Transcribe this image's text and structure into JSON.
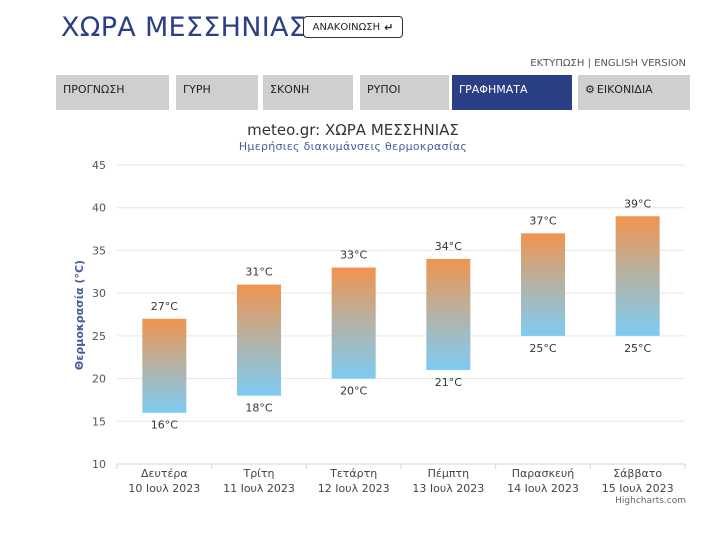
{
  "header": {
    "title": "ΧΩΡΑ ΜΕΣΣΗΝΙΑΣ",
    "announce_label": "ΑΝΑΚΟΙΝΩΣΗ",
    "announce_icon": "return-arrow-icon",
    "print_link": "ΕΚΤΥΠΩΣΗ",
    "separator": "|",
    "english_link": "ENGLISH VERSION"
  },
  "tabs": [
    {
      "label": "ΠΡΟΓΝΩΣΗ",
      "active": false
    },
    {
      "label": "ΓΥΡΗ",
      "active": false
    },
    {
      "label": "ΣΚΟΝΗ",
      "active": false
    },
    {
      "label": "ΡΥΠΟΙ",
      "active": false
    },
    {
      "label": "ΓΡΑΦΗΜΑΤΑ",
      "active": true
    },
    {
      "label": "ΕΙΚΟΝΙΔΙΑ",
      "active": false,
      "icon": "gear-icon"
    }
  ],
  "colors": {
    "brand": "#2b3f85",
    "bar_top": "#f0944f",
    "bar_bottom": "#7ecbf3",
    "tab_bg": "#cfcfcf"
  },
  "chart_data": {
    "type": "bar",
    "title": "meteo.gr: ΧΩΡΑ ΜΕΣΣΗΝΙΑΣ",
    "subtitle": "Ημερήσιες διακυμάνσεις θερμοκρασίας",
    "ylabel": "Θερμοκρασία (°C)",
    "ylim": [
      10,
      45
    ],
    "yticks": [
      10,
      15,
      20,
      25,
      30,
      35,
      40,
      45
    ],
    "grid": true,
    "categories": [
      {
        "day": "Δευτέρα",
        "date": "10 Ιουλ 2023"
      },
      {
        "day": "Τρίτη",
        "date": "11 Ιουλ 2023"
      },
      {
        "day": "Τετάρτη",
        "date": "12 Ιουλ 2023"
      },
      {
        "day": "Πέμπτη",
        "date": "13 Ιουλ 2023"
      },
      {
        "day": "Παρασκευή",
        "date": "14 Ιουλ 2023"
      },
      {
        "day": "Σάββατο",
        "date": "15 Ιουλ 2023"
      }
    ],
    "min": [
      16,
      18,
      20,
      21,
      25,
      25
    ],
    "max": [
      27,
      31,
      33,
      34,
      37,
      39
    ],
    "unit": "°C",
    "credits": "Highcharts.com"
  }
}
